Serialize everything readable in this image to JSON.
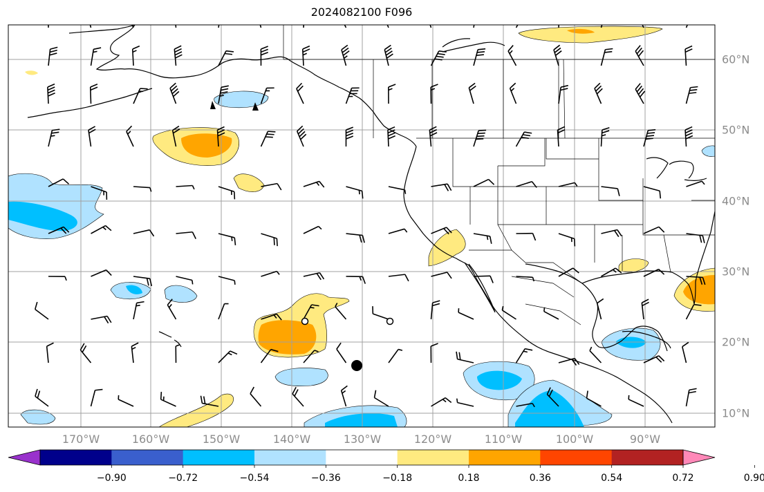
{
  "title": "2024082100 F096",
  "lon_labels": [
    "170°W",
    "160°W",
    "150°W",
    "140°W",
    "130°W",
    "120°W",
    "110°W",
    "100°W",
    "90°W"
  ],
  "lat_labels": [
    "60°N",
    "50°N",
    "40°N",
    "30°N",
    "20°N",
    "10°N"
  ],
  "colorbar": {
    "colors": [
      "#9932cc",
      "#00008b",
      "#3a5fcd",
      "#00bfff",
      "#b0e2ff",
      "#ffffff",
      "#ffea80",
      "#ffa500",
      "#ff4500",
      "#b22222",
      "#ff88b8"
    ],
    "ticks": [
      "−0.90",
      "−0.72",
      "−0.54",
      "−0.36",
      "−0.18",
      "0.18",
      "0.36",
      "0.54",
      "0.72",
      "0.90"
    ]
  },
  "colors": {
    "grid": "#a0a0a0",
    "coast": "#000000",
    "label": "#8c8c8c"
  }
}
